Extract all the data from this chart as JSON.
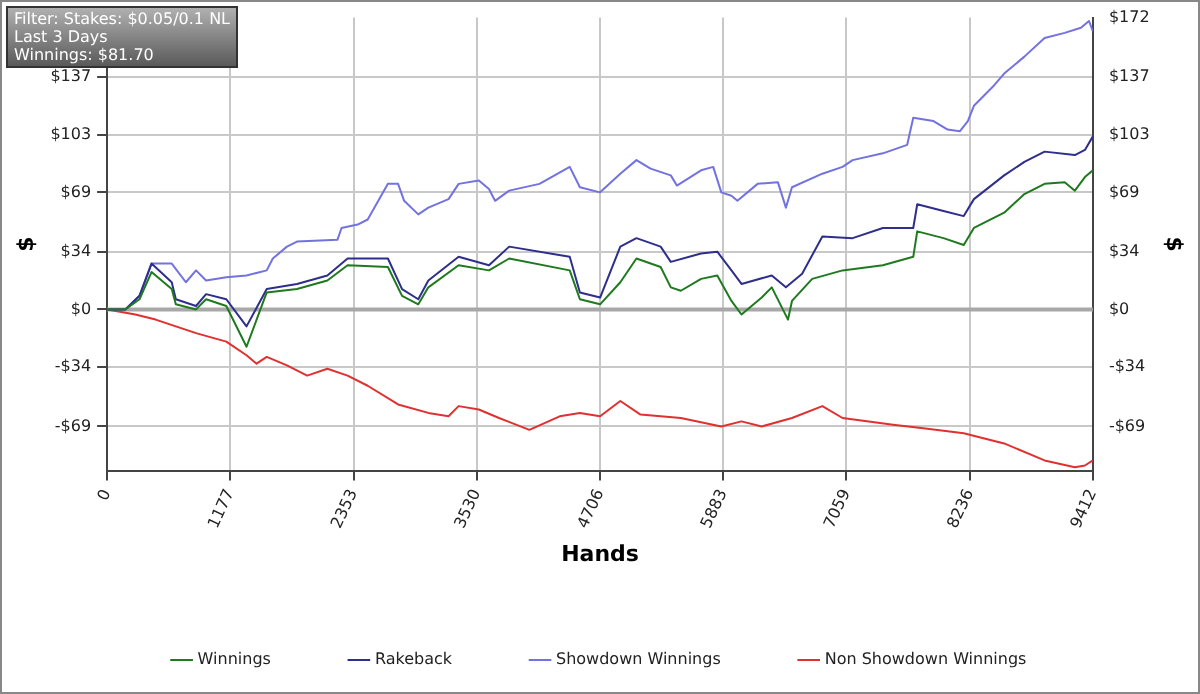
{
  "chart_data": {
    "type": "line",
    "xlabel": "Hands",
    "ylabel": "$",
    "y2label": "$",
    "annotations": [
      "Filter: Stakes: $0.05/0.1 NL",
      "Last  3 Days",
      "Winnings: $81.70"
    ],
    "xlim": [
      0,
      9412
    ],
    "xticks": [
      0,
      1177,
      2353,
      3530,
      4706,
      5883,
      7059,
      8236,
      9412
    ],
    "ylim": [
      -95,
      172
    ],
    "yticks": [
      {
        "value": -69,
        "label": "-$69"
      },
      {
        "value": -34,
        "label": "-$34"
      },
      {
        "value": 0,
        "label": "$0"
      },
      {
        "value": 34,
        "label": "$34"
      },
      {
        "value": 69,
        "label": "$69"
      },
      {
        "value": 103,
        "label": "$103"
      },
      {
        "value": 137,
        "label": "$137"
      }
    ],
    "y2lim": [
      -95,
      172
    ],
    "y2ticks": [
      {
        "value": -69,
        "label": "-$69"
      },
      {
        "value": -34,
        "label": "-$34"
      },
      {
        "value": 0,
        "label": "$0"
      },
      {
        "value": 34,
        "label": "$34"
      },
      {
        "value": 69,
        "label": "$69"
      },
      {
        "value": 103,
        "label": "$103"
      },
      {
        "value": 137,
        "label": "$137"
      },
      {
        "value": 172,
        "label": "$172"
      }
    ],
    "grid": true,
    "legend": "bottom",
    "marker": "none",
    "line_style": "solid",
    "ref_lines": [
      {
        "axis": "y",
        "value": 0,
        "color": "#a8a8a8"
      }
    ],
    "series": [
      {
        "name": "Winnings",
        "color": "#1f7a1f",
        "x": [
          0,
          174,
          309,
          424,
          617,
          656,
          849,
          945,
          1138,
          1331,
          1524,
          1813,
          2103,
          2296,
          2681,
          2816,
          2971,
          3067,
          3356,
          3646,
          3839,
          4417,
          4514,
          4707,
          4900,
          5054,
          5285,
          5382,
          5478,
          5671,
          5826,
          5961,
          6057,
          6250,
          6346,
          6501,
          6539,
          6732,
          7022,
          7407,
          7697,
          7735,
          7986,
          8179,
          8276,
          8565,
          8758,
          8951,
          9143,
          9240,
          9336,
          9412
        ],
        "values": [
          0,
          0,
          6,
          22,
          12,
          3,
          0,
          6,
          2,
          -22,
          10,
          12,
          17,
          26,
          25,
          8,
          3,
          13,
          26,
          23,
          30,
          23,
          6,
          3,
          16,
          30,
          25,
          13,
          11,
          18,
          20,
          5,
          -3,
          7,
          13,
          -6,
          5,
          18,
          23,
          26,
          31,
          46,
          42,
          38,
          48,
          57,
          68,
          74,
          75,
          70,
          78,
          82
        ]
      },
      {
        "name": "Rakeback",
        "color": "#2e2e8c",
        "x": [
          0,
          174,
          309,
          424,
          617,
          656,
          849,
          945,
          1138,
          1331,
          1524,
          1813,
          2103,
          2296,
          2681,
          2816,
          2971,
          3067,
          3356,
          3646,
          3839,
          4417,
          4514,
          4707,
          4900,
          5054,
          5285,
          5382,
          5671,
          5826,
          5961,
          6057,
          6346,
          6481,
          6636,
          6829,
          7118,
          7407,
          7697,
          7735,
          7986,
          8179,
          8276,
          8565,
          8758,
          8951,
          9240,
          9336,
          9412
        ],
        "values": [
          0,
          0,
          8,
          27,
          16,
          6,
          2,
          9,
          6,
          -10,
          12,
          15,
          20,
          30,
          30,
          12,
          6,
          17,
          31,
          26,
          37,
          31,
          10,
          7,
          37,
          42,
          37,
          28,
          33,
          34,
          23,
          15,
          20,
          13,
          21,
          43,
          42,
          48,
          48,
          62,
          58,
          55,
          65,
          79,
          87,
          93,
          91,
          94,
          102
        ]
      },
      {
        "name": "Showdown Winnings",
        "color": "#7272e0",
        "x": [
          0,
          174,
          309,
          424,
          617,
          752,
          849,
          945,
          1138,
          1331,
          1524,
          1582,
          1717,
          1813,
          2199,
          2238,
          2392,
          2488,
          2681,
          2778,
          2836,
          2971,
          3067,
          3260,
          3356,
          3549,
          3646,
          3704,
          3839,
          4128,
          4417,
          4514,
          4707,
          4900,
          5054,
          5189,
          5382,
          5440,
          5671,
          5787,
          5864,
          5961,
          6018,
          6211,
          6404,
          6481,
          6539,
          6829,
          7022,
          7118,
          7407,
          7639,
          7697,
          7890,
          8025,
          8141,
          8218,
          8276,
          8468,
          8565,
          8758,
          8951,
          9143,
          9298,
          9375,
          9412
        ],
        "values": [
          0,
          0,
          8,
          27,
          27,
          16,
          23,
          17,
          19,
          20,
          23,
          30,
          37,
          40,
          41,
          48,
          50,
          53,
          74,
          74,
          64,
          56,
          60,
          65,
          74,
          76,
          71,
          64,
          70,
          74,
          84,
          72,
          69,
          80,
          88,
          83,
          79,
          73,
          82,
          84,
          69,
          67,
          64,
          74,
          75,
          60,
          72,
          80,
          84,
          88,
          92,
          97,
          113,
          111,
          106,
          105,
          111,
          120,
          132,
          139,
          149,
          160,
          163,
          166,
          170,
          164
        ]
      },
      {
        "name": "Non Showdown Winnings",
        "color": "#e03030",
        "x": [
          0,
          270,
          463,
          656,
          849,
          1138,
          1331,
          1427,
          1524,
          1717,
          1910,
          2103,
          2296,
          2488,
          2778,
          3067,
          3260,
          3356,
          3549,
          3742,
          4032,
          4321,
          4514,
          4707,
          4900,
          5093,
          5478,
          5864,
          6057,
          6250,
          6539,
          6829,
          7022,
          7504,
          7793,
          8179,
          8565,
          8951,
          9240,
          9336,
          9412
        ],
        "values": [
          0,
          -3,
          -6,
          -10,
          -14,
          -19,
          -27,
          -32,
          -28,
          -33,
          -39,
          -35,
          -39,
          -45,
          -56,
          -61,
          -63,
          -57,
          -59,
          -64,
          -71,
          -63,
          -61,
          -63,
          -54,
          -62,
          -64,
          -69,
          -66,
          -69,
          -64,
          -57,
          -64,
          -68,
          -70,
          -73,
          -79,
          -89,
          -93,
          -92,
          -89
        ]
      }
    ]
  }
}
